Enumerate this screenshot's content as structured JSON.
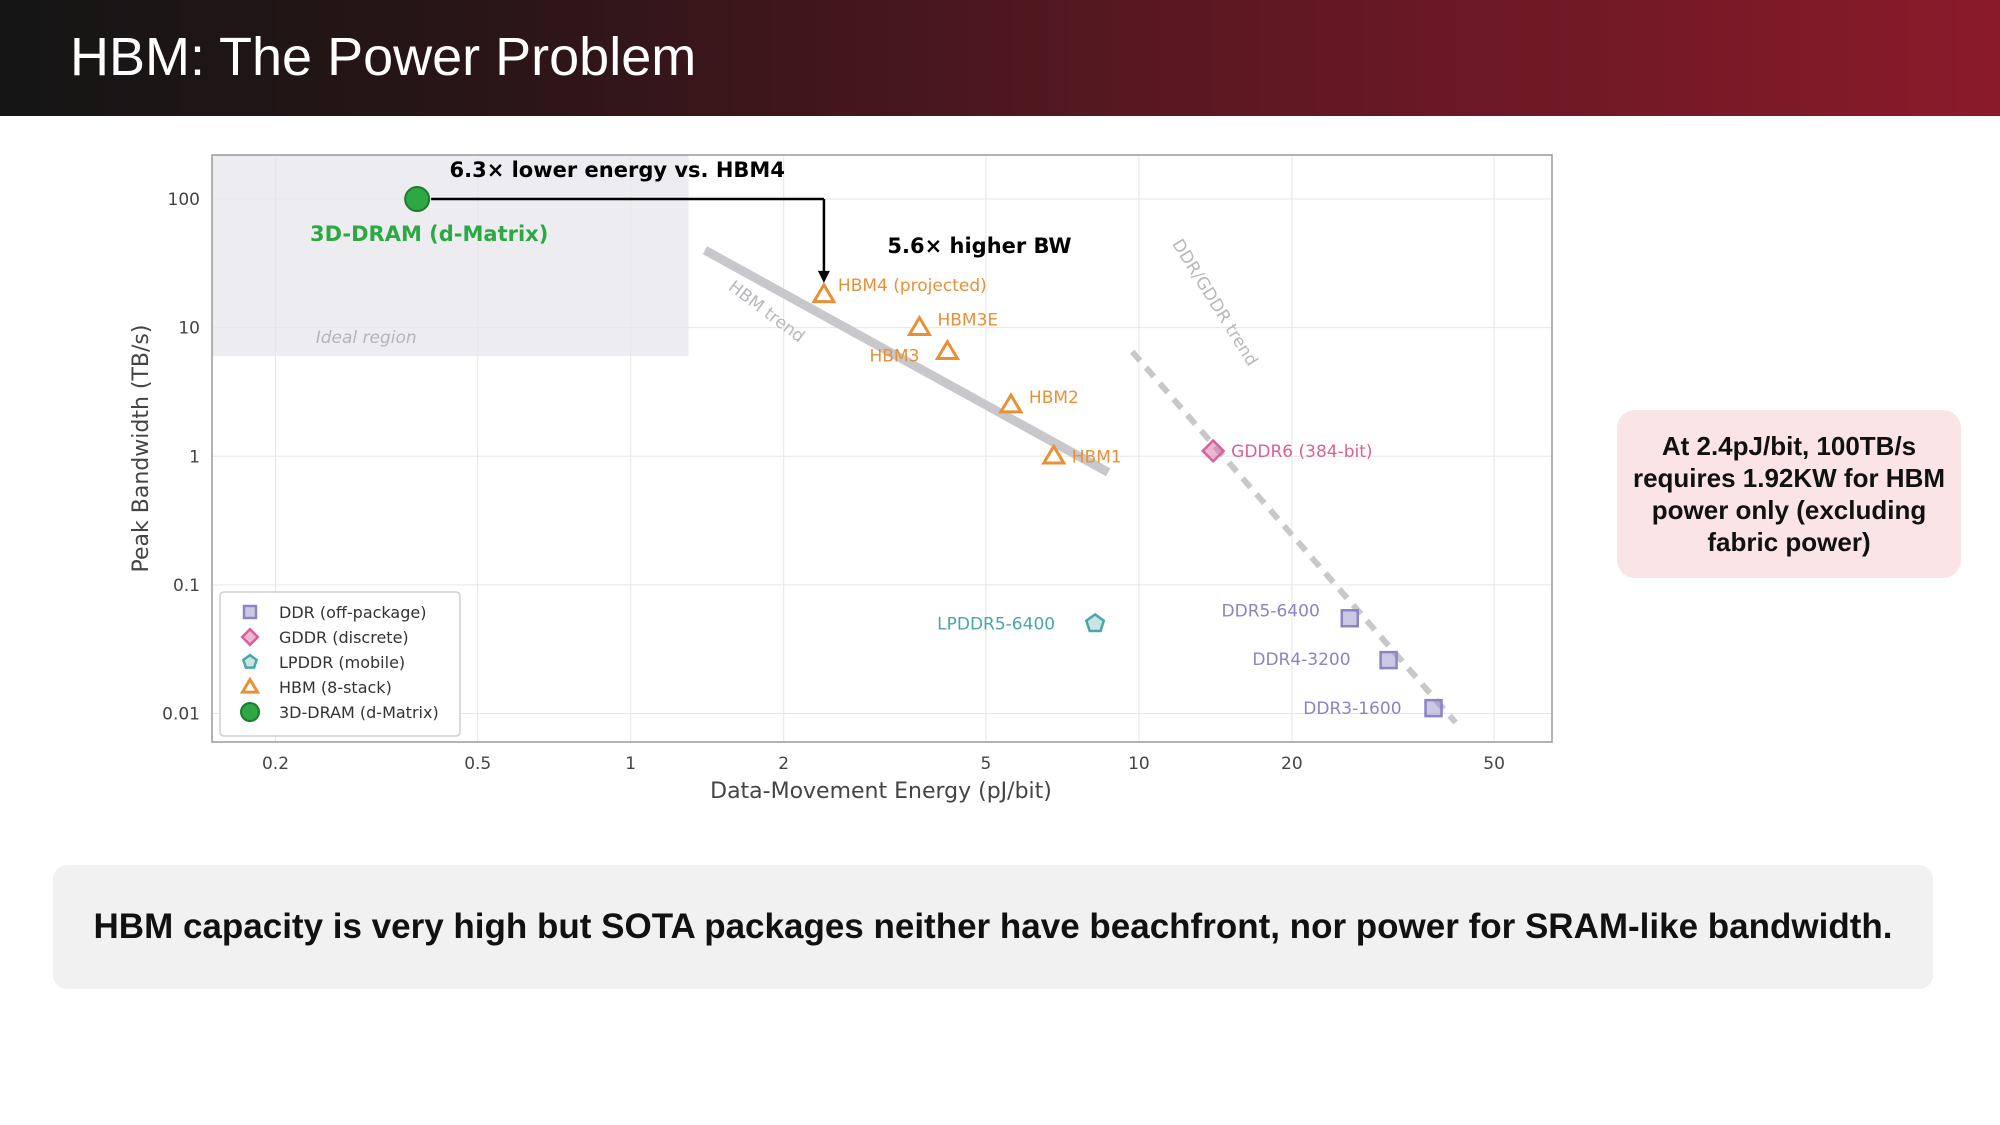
{
  "header": {
    "title": "HBM: The Power Problem"
  },
  "callout": {
    "text": "At 2.4pJ/bit, 100TB/s requires 1.92KW for HBM power only (excluding fabric power)"
  },
  "footer": {
    "text": "HBM capacity is very high but SOTA packages neither have beachfront, nor power for SRAM-like bandwidth."
  },
  "chart_data": {
    "type": "scatter",
    "xlabel": "Data-Movement Energy (pJ/bit)",
    "ylabel": "Peak Bandwidth (TB/s)",
    "x_scale": "log",
    "y_scale": "log",
    "xlim": [
      0.15,
      65
    ],
    "ylim": [
      0.006,
      220
    ],
    "x_ticks": [
      {
        "value": 0.2,
        "label": "0.2"
      },
      {
        "value": 0.5,
        "label": "0.5"
      },
      {
        "value": 1,
        "label": "1"
      },
      {
        "value": 2,
        "label": "2"
      },
      {
        "value": 5,
        "label": "5"
      },
      {
        "value": 10,
        "label": "10"
      },
      {
        "value": 20,
        "label": "20"
      },
      {
        "value": 50,
        "label": "50"
      }
    ],
    "y_ticks": [
      {
        "value": 0.01,
        "label": "0.01"
      },
      {
        "value": 0.1,
        "label": "0.1"
      },
      {
        "value": 1,
        "label": "1"
      },
      {
        "value": 10,
        "label": "10"
      },
      {
        "value": 100,
        "label": "100"
      }
    ],
    "grid": true,
    "legend_position": "bottom-left",
    "colors": {
      "ddr": "#8a84c2",
      "gddr": "#d9609a",
      "lpddr": "#4aa7a5",
      "hbm": "#e69138",
      "dram3d": "#2ea843",
      "trend": "#c8c8cc"
    },
    "series": [
      {
        "name": "DDR (off-package)",
        "marker": "square",
        "color": "#8a84c2",
        "points": [
          {
            "label": "DDR5-6400",
            "x": 26,
            "y": 0.055
          },
          {
            "label": "DDR4-3200",
            "x": 31,
            "y": 0.026
          },
          {
            "label": "DDR3-1600",
            "x": 38,
            "y": 0.011
          }
        ]
      },
      {
        "name": "GDDR (discrete)",
        "marker": "diamond",
        "color": "#d9609a",
        "points": [
          {
            "label": "GDDR6 (384-bit)",
            "x": 14,
            "y": 1.1
          }
        ]
      },
      {
        "name": "LPDDR (mobile)",
        "marker": "pentagon",
        "color": "#4aa7a5",
        "points": [
          {
            "label": "LPDDR5-6400",
            "x": 8.2,
            "y": 0.05
          }
        ]
      },
      {
        "name": "HBM (8-stack)",
        "marker": "triangle",
        "color": "#e69138",
        "points": [
          {
            "label": "HBM1",
            "x": 6.8,
            "y": 1.0
          },
          {
            "label": "HBM2",
            "x": 5.6,
            "y": 2.5
          },
          {
            "label": "HBM3",
            "x": 4.2,
            "y": 6.5
          },
          {
            "label": "HBM3E",
            "x": 3.7,
            "y": 10
          },
          {
            "label": "HBM4 (projected)",
            "x": 2.4,
            "y": 18
          }
        ]
      },
      {
        "name": "3D-DRAM (d-Matrix)",
        "marker": "circle",
        "color": "#2ea843",
        "points": [
          {
            "label": "3D-DRAM (d-Matrix)",
            "x": 0.38,
            "y": 100
          }
        ]
      }
    ],
    "trend_lines": [
      {
        "label": "HBM trend",
        "x": [
          1.4,
          8.7
        ],
        "y": [
          40,
          0.75
        ]
      },
      {
        "label": "DDR/GDDR trend",
        "x": [
          9.7,
          42
        ],
        "y": [
          6.5,
          0.0085
        ]
      }
    ],
    "regions": [
      {
        "label": "Ideal region",
        "x": [
          0.15,
          1.3
        ],
        "y": [
          6,
          220
        ]
      }
    ],
    "annotations": [
      {
        "text": "6.3× lower energy vs. HBM4"
      },
      {
        "text": "5.6× higher BW"
      }
    ]
  }
}
